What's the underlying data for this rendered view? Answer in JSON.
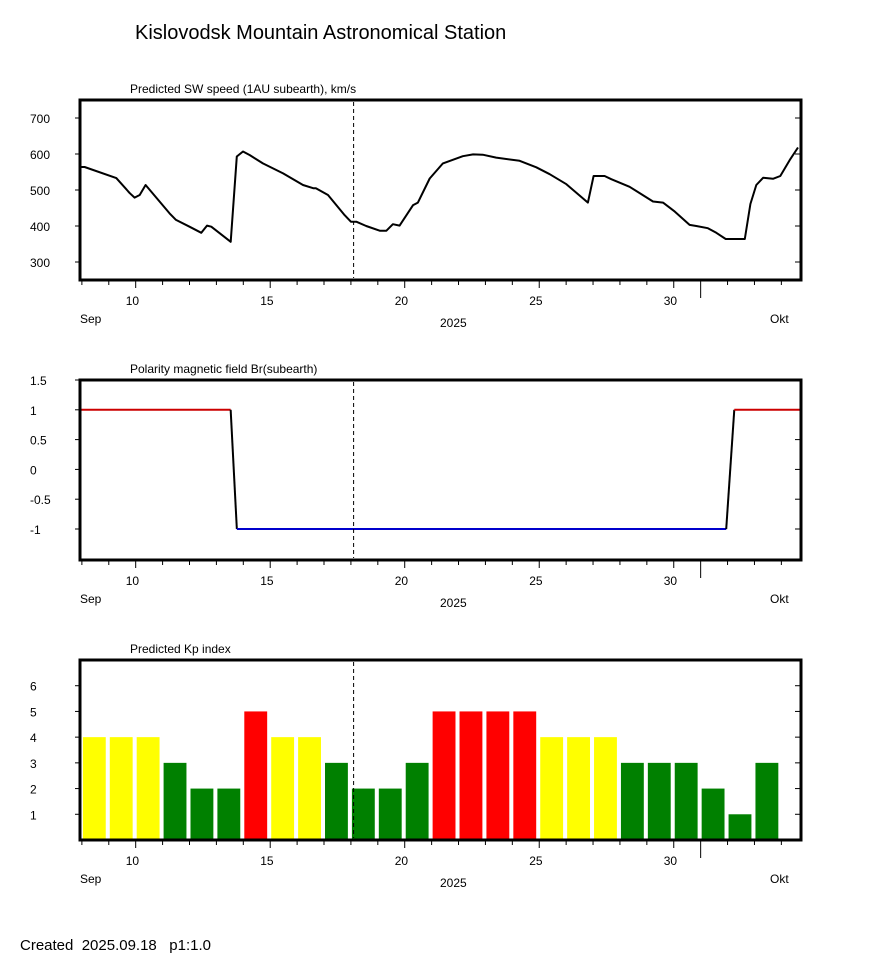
{
  "title": "Kislovodsk Mountain Astronomical Station",
  "footer": "Created  2025.09.18   p1:1.0",
  "colors": {
    "kp_high": "#ff0000",
    "kp_mid": "#ffff00",
    "kp_low": "#008000",
    "positive": "#cc0000",
    "negative": "#0000cc",
    "line": "#000000"
  },
  "x_axis": {
    "month_left": "Sep",
    "month_right": "Okt",
    "year": "2025",
    "range_days": [
      7.93,
      34.73
    ],
    "ticks": [
      {
        "day": 10,
        "label": "10"
      },
      {
        "day": 15,
        "label": "15"
      },
      {
        "day": 20,
        "label": "20"
      },
      {
        "day": 25,
        "label": "25"
      },
      {
        "day": 30,
        "label": "30"
      }
    ],
    "month_boundary_day": 31,
    "current_day_marker": 18.1
  },
  "chart_data": [
    {
      "type": "line",
      "title": "Predicted SW speed (1AU subearth), km/s",
      "xlabel": "2025",
      "ylabel": "km/s",
      "ylim": [
        250,
        750
      ],
      "yticks": [
        "300",
        "400",
        "500",
        "600",
        "700"
      ],
      "x": [
        7.95,
        8.1,
        9.28,
        9.78,
        9.96,
        10.15,
        10.37,
        11.26,
        11.5,
        12.0,
        12.44,
        12.65,
        12.81,
        13.53,
        13.76,
        13.99,
        14.24,
        14.73,
        15.48,
        16.22,
        16.6,
        16.7,
        17.15,
        17.77,
        18.0,
        18.2,
        18.57,
        19.07,
        19.32,
        19.56,
        19.81,
        20.31,
        20.49,
        20.93,
        21.42,
        22.16,
        22.54,
        22.9,
        23.4,
        24.27,
        24.89,
        25.39,
        26.01,
        26.81,
        27.02,
        27.43,
        27.68,
        28.36,
        29.23,
        29.6,
        30.04,
        30.59,
        30.84,
        31.27,
        31.58,
        31.93,
        32.64,
        32.85,
        33.07,
        33.32,
        33.69,
        33.96,
        34.31,
        34.62
      ],
      "y": [
        564,
        564,
        533,
        491,
        479,
        486,
        514,
        435,
        417,
        398,
        381,
        401,
        398,
        356,
        593,
        607,
        597,
        574,
        546,
        514,
        505,
        505,
        486,
        430,
        412,
        412,
        400,
        387,
        387,
        405,
        401,
        458,
        465,
        532,
        574,
        594,
        599,
        598,
        590,
        581,
        563,
        544,
        516,
        465,
        539,
        539,
        530,
        509,
        468,
        465,
        440,
        403,
        400,
        394,
        381,
        364,
        364,
        461,
        514,
        534,
        531,
        539,
        583,
        618
      ]
    },
    {
      "type": "line",
      "title": "Polarity magnetic field  Br(subearth)",
      "ylim": [
        -1.52,
        1.5
      ],
      "yticks": [
        "1.5",
        "1",
        "0.5",
        "0",
        "-0.5",
        "-1"
      ],
      "ytick_values": [
        1.5,
        1,
        0.5,
        0,
        -0.5,
        -1
      ],
      "segments": [
        {
          "polarity": "positive",
          "x": [
            7.93,
            13.53
          ],
          "y": [
            1,
            1
          ]
        },
        {
          "polarity": "transition",
          "x": [
            13.53,
            13.76
          ],
          "y": [
            1,
            -1
          ]
        },
        {
          "polarity": "negative",
          "x": [
            13.76,
            31.95
          ],
          "y": [
            -1,
            -1
          ]
        },
        {
          "polarity": "transition",
          "x": [
            31.95,
            32.25
          ],
          "y": [
            -1,
            1
          ]
        },
        {
          "polarity": "positive",
          "x": [
            32.25,
            34.73
          ],
          "y": [
            1,
            1
          ]
        }
      ]
    },
    {
      "type": "bar",
      "title": "Predicted Kp index",
      "ylim": [
        0,
        7
      ],
      "yticks": [
        "1",
        "2",
        "3",
        "4",
        "5",
        "6"
      ],
      "days": [
        8,
        9,
        10,
        11,
        12,
        13,
        14,
        15,
        16,
        17,
        18,
        19,
        20,
        21,
        22,
        23,
        24,
        25,
        26,
        27,
        28,
        29,
        30,
        31,
        32,
        33
      ],
      "values": [
        4,
        4,
        4,
        3,
        2,
        2,
        5,
        4,
        4,
        3,
        2,
        2,
        3,
        5,
        5,
        5,
        5,
        4,
        4,
        4,
        3,
        3,
        3,
        2,
        1,
        3
      ]
    }
  ]
}
